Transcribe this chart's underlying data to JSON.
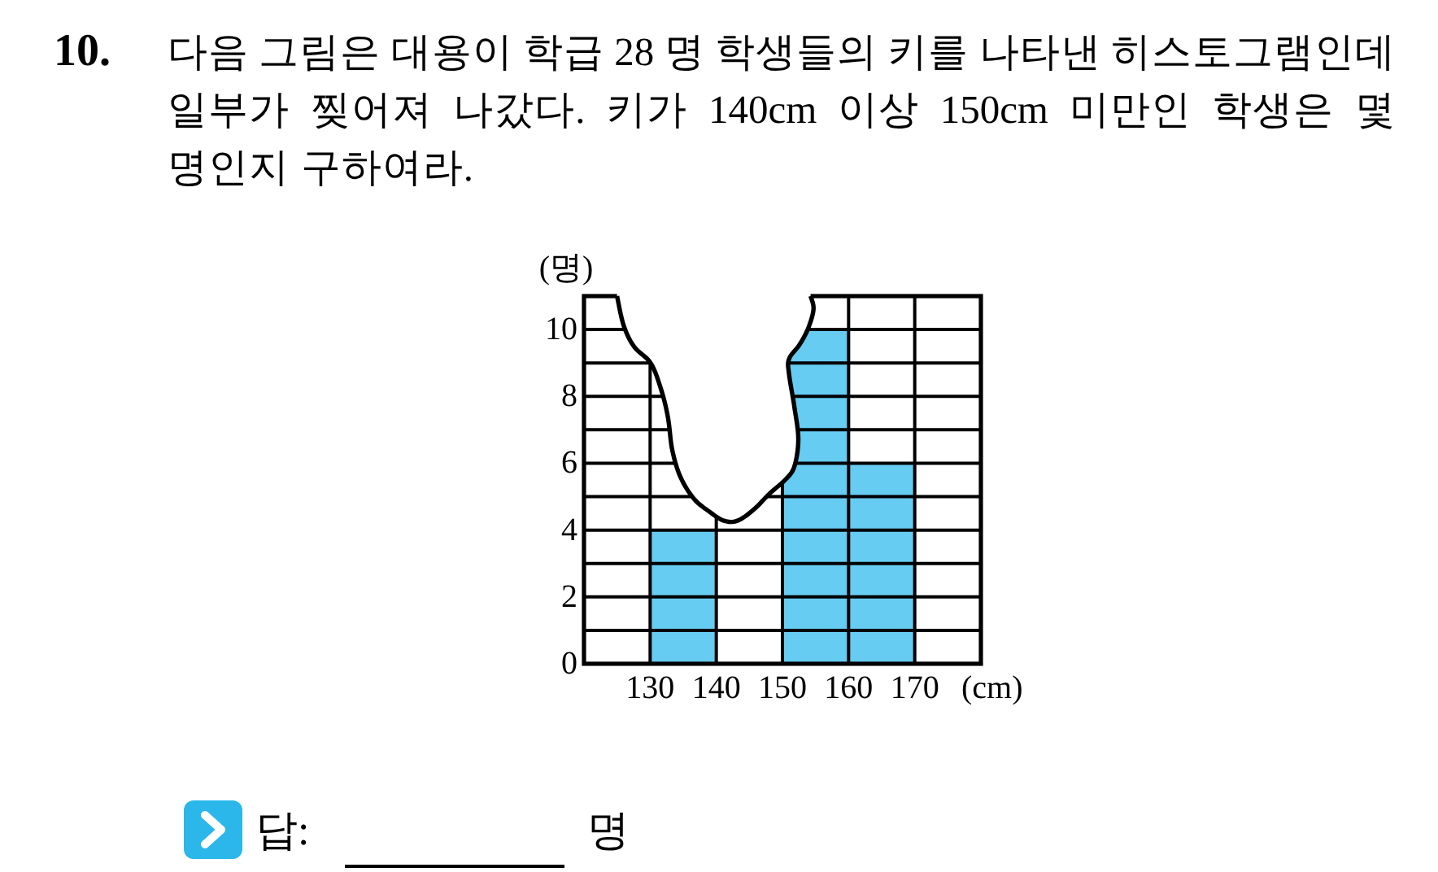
{
  "chart_data": {
    "type": "histogram",
    "title": "10.",
    "subtitle": "다음 그림은 대용이 학급 28 명 학생들의 키를 나타낸 히스토그램인데 일부가 찢어져 나갔다. 키가 140cm 이상 150cm 미만인 학생은 몇 명인지 구하여라.",
    "xlabel": "(cm)",
    "ylabel": "(명)",
    "bins": [
      130,
      140,
      150,
      160,
      170
    ],
    "values": [
      4,
      null,
      10,
      6
    ],
    "color": "#66ccf2",
    "xlim": [
      120,
      180
    ],
    "xticks": [
      130,
      140,
      150,
      160,
      170
    ],
    "ylim": [
      0,
      11
    ],
    "yticks": [
      0,
      {
        "value": 1,
        "label": null
      },
      2,
      {
        "value": 3,
        "label": null
      },
      4,
      {
        "value": 5,
        "label": null
      },
      6,
      {
        "value": 7,
        "label": null
      },
      8,
      {
        "value": 9,
        "label": null
      },
      10
    ],
    "grid": true,
    "annotations": [
      "답:",
      "명"
    ]
  }
}
